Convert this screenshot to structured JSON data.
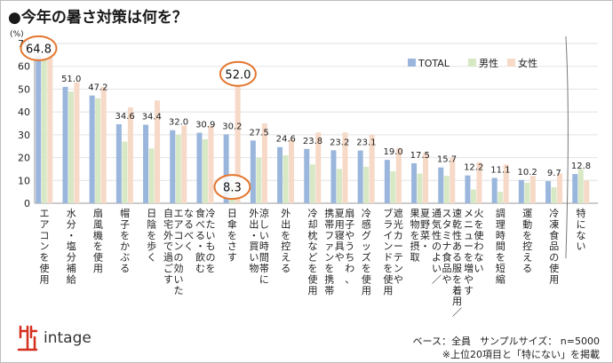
{
  "page": {
    "title": "●今年の暑さ対策は何を？"
  },
  "chart_data": {
    "type": "bar",
    "title": "今年の暑さ対策は何を？",
    "ylabel": "(%)",
    "ylim": [
      0,
      70
    ],
    "yticks": [
      0,
      10,
      20,
      30,
      40,
      50,
      60,
      70
    ],
    "grid": true,
    "legend_position": "top-right",
    "categories": [
      "エアコンを使用",
      "水分・塩分補給",
      "扇風機を使用",
      "帽子をかぶる",
      "日陰を歩く",
      "なるべくエアコンの効いた自宅外で過ごす",
      "冷たいものを食べる・飲む",
      "日傘をさす",
      "涼しい時間帯に外出・買い物",
      "外出を控える",
      "冷却枕などを使用",
      "扇子やうちわ、夏用寝具や携帯ファンを携帯",
      "冷感グッズを使用",
      "遮光カーテンやブラインドを使用",
      "夏野菜・果物を摂取",
      "速乾性ある服を着用／スタミナ食品や通気性のよい／",
      "火を使わないメニューを増やす",
      "調理時間を短縮",
      "運動を控える",
      "冷凍食品の使用",
      "特にない"
    ],
    "category_lines": [
      [
        "エアコンを使用"
      ],
      [
        "水分・塩分補給"
      ],
      [
        "扇風機を使用"
      ],
      [
        "帽子をかぶる"
      ],
      [
        "日陰を歩く"
      ],
      [
        "なるべく",
        "エアコンの効いた",
        "自宅外で過ごす"
      ],
      [
        "冷たいものを",
        "食べる・飲む"
      ],
      [
        "日傘をさす"
      ],
      [
        "涼しい時間帯に",
        "外出・買い物"
      ],
      [
        "外出を控える"
      ],
      [
        "冷却枕などを使用"
      ],
      [
        "扇子やうちわ、",
        "夏用寝具や",
        "携帯ファンを携帯"
      ],
      [
        "冷感グッズを使用"
      ],
      [
        "遮光カーテンや",
        "ブラインドを使用"
      ],
      [
        "夏野菜・",
        "果物を摂取"
      ],
      [
        "速乾性ある服を着用／",
        "スタミナ食品や",
        "通気性のよい／"
      ],
      [
        "火を使わない",
        "メニューを増やす"
      ],
      [
        "調理時間を短縮"
      ],
      [
        "運動を控える"
      ],
      [
        "冷凍食品の使用"
      ],
      [
        "特にない"
      ]
    ],
    "total_labels": [
      "64.8",
      "51.0",
      "47.2",
      "34.6",
      "34.4",
      "32.0",
      "30.9",
      "30.2",
      "27.5",
      "24.6",
      "23.8",
      "23.2",
      "23.1",
      "19.0",
      "17.5",
      "15.7",
      "12.2",
      "11.1",
      "10.2",
      "9.7",
      "12.8"
    ],
    "series": [
      {
        "name": "TOTAL",
        "color": "#9ab6dc",
        "values": [
          64.8,
          51.0,
          47.2,
          34.6,
          34.4,
          32.0,
          30.9,
          30.2,
          27.5,
          24.6,
          23.8,
          23.2,
          23.1,
          19.0,
          17.5,
          15.7,
          12.2,
          11.1,
          10.2,
          9.7,
          12.8
        ]
      },
      {
        "name": "男性",
        "color": "#d7e8c5",
        "values": [
          63.0,
          49.0,
          46.0,
          27.0,
          24.0,
          30.0,
          28.0,
          8.3,
          20.0,
          21.0,
          17.0,
          15.0,
          16.0,
          14.0,
          13.0,
          12.0,
          6.0,
          5.0,
          9.0,
          7.0,
          15.0
        ]
      },
      {
        "name": "女性",
        "color": "#f6d9c7",
        "values": [
          67.0,
          53.0,
          51.0,
          42.0,
          45.0,
          34.0,
          34.0,
          52.0,
          35.0,
          28.0,
          31.0,
          31.0,
          30.0,
          24.0,
          22.0,
          20.0,
          18.0,
          17.0,
          12.0,
          13.0,
          10.0
        ]
      }
    ],
    "callouts": [
      {
        "category": "エアコンを使用",
        "series": "TOTAL",
        "label": "64.8"
      },
      {
        "category": "日傘をさす",
        "series": "女性",
        "label": "52.0"
      },
      {
        "category": "日傘をさす",
        "series": "男性",
        "label": "8.3"
      }
    ],
    "callout_color": "#e4762f"
  },
  "notes": {
    "base": "ベース：全員",
    "sample": "サンプルサイズ： n=5000",
    "footnote": "※上位20項目と「特にない」を掲載"
  },
  "brand": {
    "name": "intage",
    "color": "#d42f1f"
  }
}
